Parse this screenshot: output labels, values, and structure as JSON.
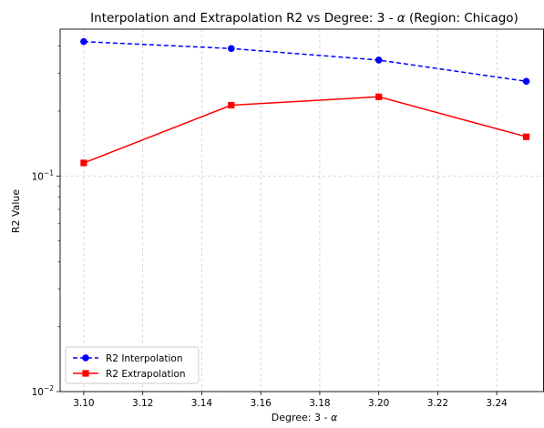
{
  "chart_data": {
    "type": "line",
    "title_prefix": "Interpolation and Extrapolation R2 vs Degree: 3 - ",
    "title_symbol": "α",
    "title_suffix": "  (Region: Chicago)",
    "xlabel_prefix": "Degree: 3 - ",
    "xlabel_symbol": "α",
    "ylabel": "R2 Value",
    "x": [
      3.1,
      3.15,
      3.2,
      3.25
    ],
    "xlim": [
      3.092,
      3.256
    ],
    "xticks": [
      3.1,
      3.12,
      3.14,
      3.16,
      3.18,
      3.2,
      3.22,
      3.24
    ],
    "xtick_labels": [
      "3.10",
      "3.12",
      "3.14",
      "3.16",
      "3.18",
      "3.20",
      "3.22",
      "3.24"
    ],
    "yscale": "log",
    "ylim": [
      0.01,
      0.48
    ],
    "yticks": [
      0.01,
      0.1
    ],
    "ytick_labels": [
      {
        "base": "10",
        "exp": "−2"
      },
      {
        "base": "10",
        "exp": "−1"
      }
    ],
    "grid": true,
    "legend_position": "lower-left",
    "series": [
      {
        "name": "R2 Interpolation",
        "values": [
          0.42,
          0.39,
          0.345,
          0.275
        ],
        "color": "#0000ff",
        "linestyle": "dashed",
        "marker": "circle"
      },
      {
        "name": "R2 Extrapolation",
        "values": [
          0.115,
          0.213,
          0.233,
          0.152
        ],
        "color": "#ff0000",
        "linestyle": "solid",
        "marker": "square"
      }
    ]
  }
}
